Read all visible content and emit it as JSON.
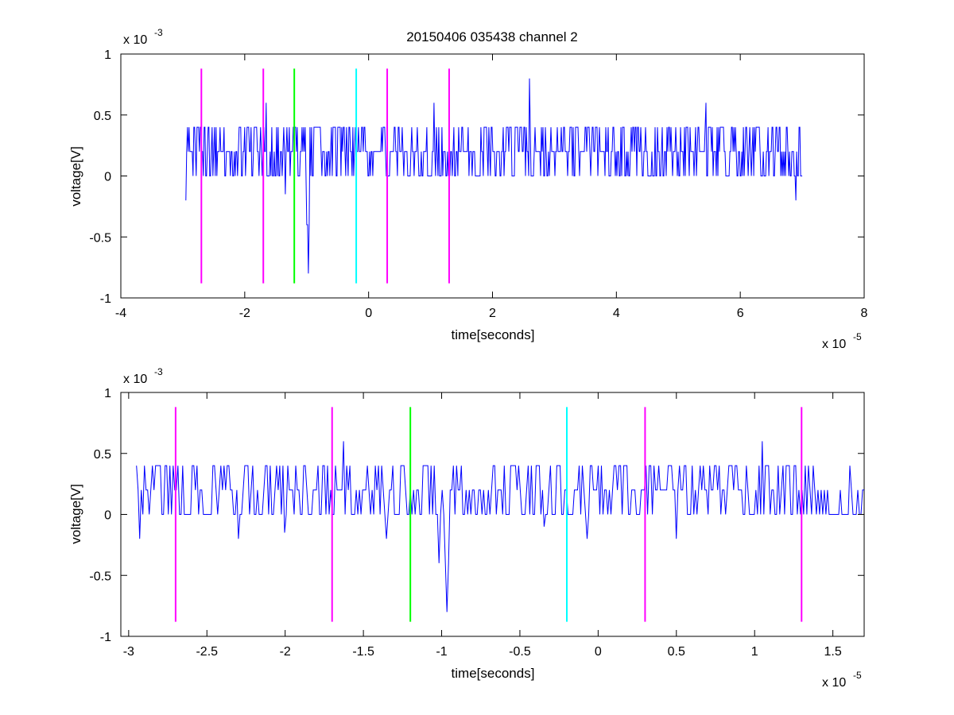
{
  "chart_data": [
    {
      "type": "line",
      "title": "20150406 035438 channel 2",
      "xlabel": "time[seconds]",
      "ylabel": "voltage[V]",
      "x_exponent_label": "x 10",
      "x_exponent": "-5",
      "y_exponent_label": "x 10",
      "y_exponent": "-3",
      "xlim": [
        -4,
        8
      ],
      "ylim": [
        -1,
        1
      ],
      "xticks": [
        -4,
        -2,
        0,
        2,
        4,
        6,
        8
      ],
      "xtick_labels": [
        "-4",
        "-2",
        "0",
        "2",
        "4",
        "6",
        "8"
      ],
      "yticks": [
        -1,
        -0.5,
        0,
        0.5,
        1
      ],
      "ytick_labels": [
        "-1",
        "-0.5",
        "0",
        "0.5",
        "1"
      ],
      "grid": false,
      "markers": [
        {
          "x": -2.7,
          "color": "#ff00ff"
        },
        {
          "x": -1.7,
          "color": "#ff00ff"
        },
        {
          "x": -1.2,
          "color": "#00ff00"
        },
        {
          "x": -0.2,
          "color": "#00ffff"
        },
        {
          "x": 0.3,
          "color": "#ff00ff"
        },
        {
          "x": 1.3,
          "color": "#ff00ff"
        }
      ],
      "marker_ylim": [
        -0.88,
        0.88
      ],
      "series": [
        {
          "color": "#0000ff",
          "x_range": [
            -2.95,
            7.0
          ],
          "baseline_levels": [
            0,
            0.2,
            0.4
          ],
          "spikes": [
            {
              "x": -2.95,
              "y": -0.2
            },
            {
              "x": -1.65,
              "y": 0.6
            },
            {
              "x": -1.35,
              "y": -0.15
            },
            {
              "x": -1.0,
              "y": -0.4
            },
            {
              "x": -0.97,
              "y": -0.8
            },
            {
              "x": 1.05,
              "y": 0.6
            },
            {
              "x": 2.6,
              "y": 0.8
            },
            {
              "x": 5.45,
              "y": 0.6
            },
            {
              "x": 6.9,
              "y": -0.2
            }
          ]
        }
      ]
    },
    {
      "type": "line",
      "title": "",
      "xlabel": "time[seconds]",
      "ylabel": "voltage[V]",
      "x_exponent_label": "x 10",
      "x_exponent": "-5",
      "y_exponent_label": "x 10",
      "y_exponent": "-3",
      "xlim": [
        -3.05,
        1.7
      ],
      "ylim": [
        -1,
        1
      ],
      "xticks": [
        -3,
        -2.5,
        -2,
        -1.5,
        -1,
        -0.5,
        0,
        0.5,
        1,
        1.5
      ],
      "xtick_labels": [
        "-3",
        "-2.5",
        "-2",
        "-1.5",
        "-1",
        "-0.5",
        "0",
        "0.5",
        "1",
        "1.5"
      ],
      "yticks": [
        -1,
        -0.5,
        0,
        0.5,
        1
      ],
      "ytick_labels": [
        "-1",
        "-0.5",
        "0",
        "0.5",
        "1"
      ],
      "grid": false,
      "markers": [
        {
          "x": -2.7,
          "color": "#ff00ff"
        },
        {
          "x": -1.7,
          "color": "#ff00ff"
        },
        {
          "x": -1.2,
          "color": "#00ff00"
        },
        {
          "x": -0.2,
          "color": "#00ffff"
        },
        {
          "x": 0.3,
          "color": "#ff00ff"
        },
        {
          "x": 1.3,
          "color": "#ff00ff"
        }
      ],
      "marker_ylim": [
        -0.88,
        0.88
      ],
      "series": [
        {
          "color": "#0000ff",
          "x_range": [
            -2.95,
            1.7
          ],
          "baseline_levels": [
            0,
            0.2,
            0.4
          ],
          "spikes": [
            {
              "x": -2.93,
              "y": -0.2
            },
            {
              "x": -2.3,
              "y": -0.2
            },
            {
              "x": -2.0,
              "y": -0.15
            },
            {
              "x": -1.63,
              "y": 0.6
            },
            {
              "x": -1.35,
              "y": -0.2
            },
            {
              "x": -1.02,
              "y": -0.4
            },
            {
              "x": -0.97,
              "y": -0.8
            },
            {
              "x": -0.35,
              "y": -0.1
            },
            {
              "x": -0.07,
              "y": -0.2
            },
            {
              "x": 0.5,
              "y": -0.2
            },
            {
              "x": 1.05,
              "y": 0.6
            }
          ]
        }
      ]
    }
  ]
}
